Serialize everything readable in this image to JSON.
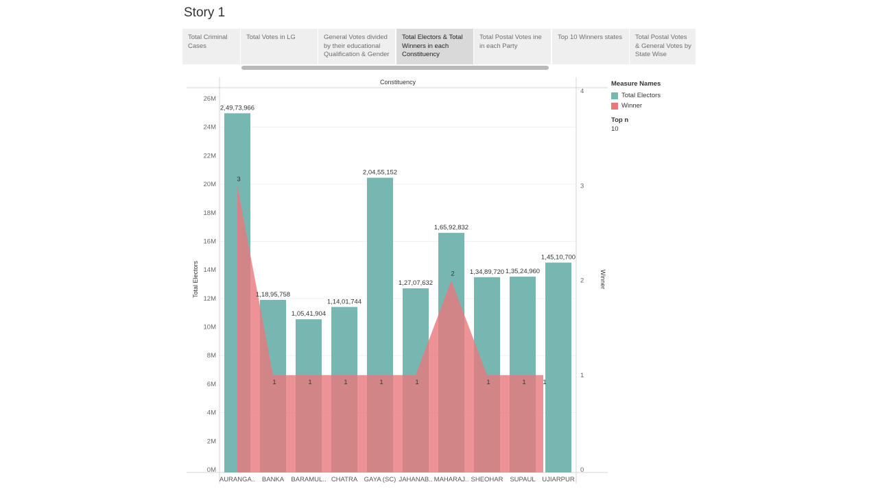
{
  "story": {
    "title": "Story 1"
  },
  "tabs": [
    {
      "label": "Total Criminal Cases",
      "active": false
    },
    {
      "label": "Total Votes in LG",
      "active": false
    },
    {
      "label": "General Votes divided by their educational Qualification & Gender",
      "active": false
    },
    {
      "label": "Total Electors & Total Winners in each Constituency",
      "active": true
    },
    {
      "label": "Total Postal Votes ine in each Party",
      "active": false
    },
    {
      "label": "Top 10 Winners states",
      "active": false
    },
    {
      "label": "Total Postal Votes & General Votes by State Wise",
      "active": false
    }
  ],
  "legend": {
    "title": "Measure Names",
    "items": [
      {
        "label": "Total Electors",
        "color": "#76b7b2"
      },
      {
        "label": "Winner",
        "color": "#e8787a"
      }
    ],
    "topn_title": "Top n",
    "topn_value": "10"
  },
  "chart_data": {
    "type": "bar",
    "header": "Constituency",
    "categories": [
      "AURANGA..",
      "BANKA",
      "BARAMUL..",
      "CHATRA",
      "GAYA (SC)",
      "JAHANAB..",
      "MAHARAJ..",
      "SHEOHAR",
      "SUPAUL",
      "UJIARPUR"
    ],
    "series": [
      {
        "name": "Total Electors",
        "axis": "left",
        "mark": "bar",
        "color": "#76b7b2",
        "values": [
          24973966,
          11895758,
          10541904,
          11401744,
          20455152,
          12707632,
          16592832,
          13489720,
          13524960,
          14510700
        ],
        "labels": [
          "2,49,73,966",
          "1,18,95,758",
          "1,05,41,904",
          "1,14,01,744",
          "2,04,55,152",
          "1,27,07,632",
          "1,65,92,832",
          "1,34,89,720",
          "1,35,24,960",
          "1,45,10,700"
        ]
      },
      {
        "name": "Winner",
        "axis": "right",
        "mark": "area",
        "color": "#e8787a",
        "values": [
          3,
          1,
          1,
          1,
          1,
          1,
          2,
          1,
          1,
          1
        ],
        "labels": [
          "3",
          "1",
          "1",
          "1",
          "1",
          "1",
          "2",
          "1",
          "1",
          "1"
        ]
      }
    ],
    "ylabel": "Total Electors",
    "y2label": "Winner",
    "ylim": [
      0,
      26000000
    ],
    "y2lim": [
      0,
      4
    ],
    "yticks": [
      "0M",
      "2M",
      "4M",
      "6M",
      "8M",
      "10M",
      "12M",
      "14M",
      "16M",
      "18M",
      "20M",
      "22M",
      "24M",
      "26M"
    ],
    "y2ticks": [
      "0",
      "1",
      "2",
      "3",
      "4"
    ]
  }
}
